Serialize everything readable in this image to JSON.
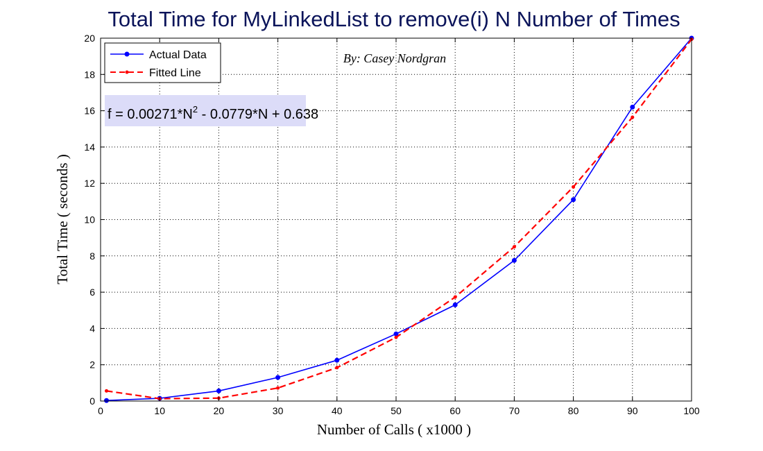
{
  "chart_data": {
    "type": "line",
    "title": "Total Time for MyLinkedList to  remove(i)  N  Number of Times",
    "xlabel": "Number of Calls ( x1000 )",
    "ylabel": "Total Time ( seconds )",
    "xlim": [
      0,
      100
    ],
    "ylim": [
      0,
      20
    ],
    "xticks": [
      0,
      10,
      20,
      30,
      40,
      50,
      60,
      70,
      80,
      90,
      100
    ],
    "yticks": [
      0,
      2,
      4,
      6,
      8,
      10,
      12,
      14,
      16,
      18,
      20
    ],
    "grid": true,
    "legend_position": "top-left",
    "series": [
      {
        "name": "Actual Data",
        "color": "#0000ff",
        "line": "solid",
        "marker": "circle",
        "x": [
          1,
          10,
          20,
          30,
          40,
          50,
          60,
          70,
          80,
          90,
          100
        ],
        "y": [
          0.03,
          0.15,
          0.56,
          1.3,
          2.25,
          3.7,
          5.3,
          7.75,
          11.1,
          16.2,
          20.0
        ]
      },
      {
        "name": "Fitted Line",
        "color": "#ff0000",
        "line": "dashed",
        "marker": "dot",
        "x": [
          1,
          10,
          20,
          30,
          40,
          50,
          60,
          70,
          80,
          90,
          100
        ],
        "y": [
          0.56,
          0.13,
          0.16,
          0.72,
          1.84,
          3.51,
          5.73,
          8.5,
          11.8,
          15.64,
          19.94
        ]
      }
    ],
    "annotations": {
      "author": "By: Casey Nordgran",
      "equation_prefix": "f = 0.00271*N",
      "equation_exponent": "2",
      "equation_suffix": " - 0.0779*N + 0.638"
    }
  },
  "colors": {
    "title": "#0b145a",
    "equation_box": "#dcdcf8",
    "grid": "#000000"
  }
}
